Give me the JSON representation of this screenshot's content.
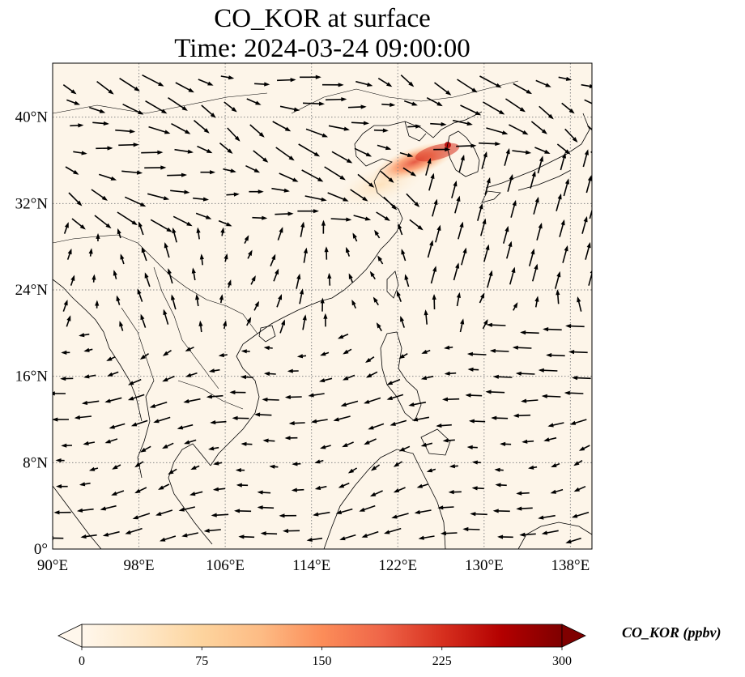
{
  "title": {
    "line1": "CO_KOR at surface",
    "line2": "Time: 2024-03-24 09:00:00"
  },
  "map": {
    "lon_range": [
      90,
      140
    ],
    "lat_range": [
      0,
      45
    ],
    "background_color": "#fdf5e9",
    "grid_style": "dotted",
    "x_ticks": [
      "90°E",
      "98°E",
      "106°E",
      "114°E",
      "122°E",
      "130°E",
      "138°E"
    ],
    "x_tick_values": [
      90,
      98,
      106,
      114,
      122,
      130,
      138
    ],
    "y_ticks": [
      "0°",
      "8°N",
      "16°N",
      "24°N",
      "32°N",
      "40°N"
    ],
    "y_tick_values": [
      0,
      8,
      16,
      24,
      32,
      40
    ]
  },
  "plume": {
    "description_value_max_ppbv": 300,
    "peak_location": {
      "lon": 126.7,
      "lat": 37.5
    }
  },
  "colorbar": {
    "label": "CO_KOR (ppbv)",
    "ticks": [
      "0",
      "75",
      "150",
      "225",
      "300"
    ],
    "tick_values": [
      0,
      75,
      150,
      225,
      300
    ],
    "range": [
      0,
      300
    ],
    "extend": "both",
    "colormap": "OrRd",
    "colors": [
      "#fff7ec",
      "#fee8c8",
      "#fdd49e",
      "#fdbb84",
      "#fc8d59",
      "#ef6548",
      "#d7301f",
      "#b30000",
      "#7f0000"
    ]
  }
}
